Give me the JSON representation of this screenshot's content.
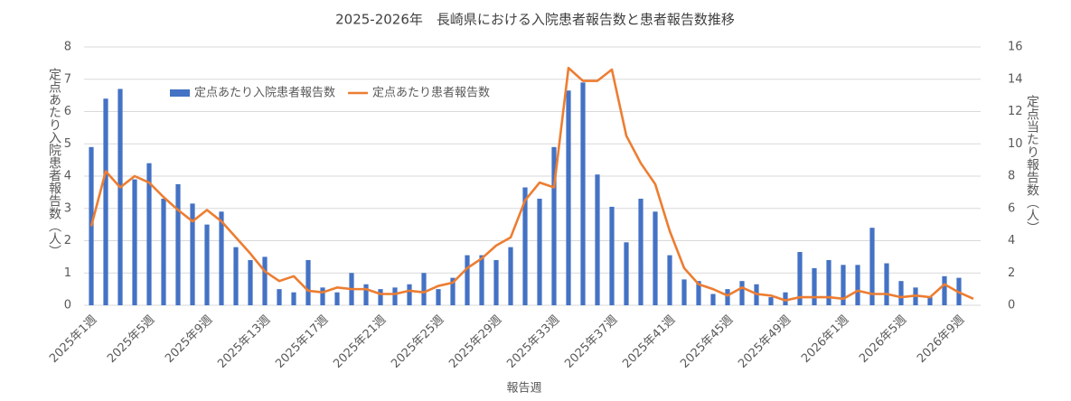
{
  "chart_data": {
    "type": "bar-line",
    "title": "2025-2026年　長崎県における入院患者報告数と患者報告数推移",
    "x_label": "報告週",
    "y_label": "定点あたり入院患者報告数（人）",
    "y2_label": "定点当たり報告数（人）",
    "categories": [
      "2025年1週",
      null,
      null,
      null,
      "2025年5週",
      null,
      null,
      null,
      "2025年9週",
      null,
      null,
      null,
      "2025年13週",
      null,
      null,
      null,
      "2025年17週",
      null,
      null,
      null,
      "2025年21週",
      null,
      null,
      null,
      "2025年25週",
      null,
      null,
      null,
      "2025年29週",
      null,
      null,
      null,
      "2025年33週",
      null,
      null,
      null,
      "2025年37週",
      null,
      null,
      null,
      "2025年41週",
      null,
      null,
      null,
      "2025年45週",
      null,
      null,
      null,
      "2025年49週",
      null,
      null,
      null,
      "2026年1週",
      null,
      null,
      null,
      "2026年5週",
      null,
      null,
      null,
      "2026年9週",
      null
    ],
    "ylim": [
      0,
      8
    ],
    "yticks": [
      0,
      1,
      2,
      3,
      4,
      5,
      6,
      7,
      8
    ],
    "y2lim": [
      0,
      16
    ],
    "y2ticks": [
      0,
      2,
      4,
      6,
      8,
      10,
      12,
      14,
      16
    ],
    "grid": true,
    "legend": "top-left",
    "series": [
      {
        "name": "定点あたり入院患者報告数",
        "type": "bar",
        "color": "#4472c4",
        "values": [
          4.9,
          6.4,
          6.7,
          3.9,
          4.4,
          3.3,
          3.75,
          3.15,
          2.5,
          2.9,
          1.8,
          1.4,
          1.5,
          0.5,
          0.4,
          1.4,
          0.55,
          0.4,
          1.0,
          0.65,
          0.5,
          0.55,
          0.65,
          1.0,
          0.5,
          0.85,
          1.55,
          1.55,
          1.4,
          1.8,
          3.65,
          3.3,
          4.9,
          6.65,
          6.9,
          4.05,
          3.05,
          1.95,
          3.3,
          2.9,
          1.55,
          0.8,
          0.75,
          0.35,
          0.5,
          0.75,
          0.65,
          0.25,
          0.4,
          1.65,
          1.15,
          1.4,
          1.25,
          1.25,
          2.4,
          1.3,
          0.75,
          0.55,
          0.25,
          0.9,
          0.85,
          null
        ]
      },
      {
        "name": "定点あたり患者報告数",
        "type": "line",
        "axis": "y2",
        "color": "#ed7d31",
        "values": [
          4.9,
          8.3,
          7.3,
          8.0,
          7.6,
          6.7,
          5.9,
          5.2,
          5.9,
          5.2,
          4.2,
          3.2,
          2.1,
          1.5,
          1.8,
          0.9,
          0.8,
          1.1,
          1.0,
          1.0,
          0.7,
          0.7,
          0.9,
          0.8,
          1.2,
          1.4,
          2.3,
          2.9,
          3.7,
          4.2,
          6.5,
          7.6,
          7.3,
          14.7,
          13.9,
          13.9,
          14.6,
          10.5,
          8.8,
          7.5,
          4.6,
          2.3,
          1.3,
          1.0,
          0.6,
          1.1,
          0.7,
          0.6,
          0.3,
          0.5,
          0.5,
          0.5,
          0.4,
          0.9,
          0.7,
          0.7,
          0.5,
          0.6,
          0.5,
          1.3,
          0.8,
          0.4
        ]
      }
    ]
  }
}
